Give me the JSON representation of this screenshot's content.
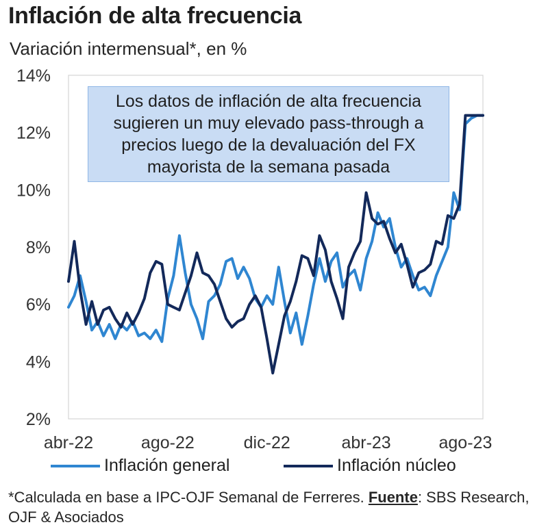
{
  "chart_data": {
    "type": "line",
    "title": "Inflación de alta frecuencia",
    "subtitle": "Variación intermensual*, en %",
    "x_tick_labels": [
      "abr-22",
      "ago-22",
      "dic-22",
      "abr-23",
      "ago-23"
    ],
    "x_tick_positions": [
      0,
      17,
      34,
      51,
      68
    ],
    "x_range": [
      0,
      71
    ],
    "ylim": [
      2,
      14
    ],
    "y_ticks": [
      2,
      4,
      6,
      8,
      10,
      12,
      14
    ],
    "y_tick_labels": [
      "2%",
      "4%",
      "6%",
      "8%",
      "10%",
      "12%",
      "14%"
    ],
    "series": [
      {
        "name": "Inflación general",
        "color": "#2f86d1",
        "x": [
          0,
          1,
          2,
          3,
          4,
          5,
          6,
          7,
          8,
          9,
          10,
          11,
          12,
          13,
          14,
          15,
          16,
          17,
          18,
          19,
          20,
          21,
          22,
          23,
          24,
          25,
          26,
          27,
          28,
          29,
          30,
          31,
          32,
          33,
          34,
          35,
          36,
          37,
          38,
          39,
          40,
          41,
          42,
          43,
          44,
          45,
          46,
          47,
          48,
          49,
          50,
          51,
          52,
          53,
          54,
          55,
          56,
          57,
          58,
          59,
          60,
          61,
          62,
          63,
          64,
          65,
          66,
          67,
          68,
          69,
          70,
          71
        ],
        "values": [
          5.9,
          6.3,
          7.0,
          6.1,
          5.1,
          5.4,
          4.9,
          5.3,
          4.8,
          5.3,
          5.1,
          5.4,
          4.9,
          5.0,
          4.8,
          5.1,
          4.7,
          6.2,
          7.0,
          8.4,
          7.1,
          6.0,
          5.5,
          4.8,
          6.1,
          6.3,
          6.7,
          7.5,
          7.6,
          6.9,
          7.3,
          6.9,
          6.2,
          5.9,
          6.3,
          6.0,
          7.3,
          6.1,
          5.0,
          5.7,
          4.6,
          5.6,
          6.7,
          7.6,
          6.8,
          7.5,
          7.8,
          6.6,
          7.0,
          7.2,
          6.5,
          7.6,
          8.2,
          9.2,
          8.7,
          9.0,
          8.0,
          7.3,
          7.6,
          7.0,
          6.5,
          6.6,
          6.3,
          7.0,
          7.5,
          8.0,
          9.9,
          9.3,
          12.3,
          12.5,
          12.6,
          12.6
        ]
      },
      {
        "name": "Inflación núcleo",
        "color": "#13295a",
        "x": [
          0,
          1,
          2,
          3,
          4,
          5,
          6,
          7,
          8,
          9,
          10,
          11,
          12,
          13,
          14,
          15,
          16,
          17,
          18,
          19,
          20,
          21,
          22,
          23,
          24,
          25,
          26,
          27,
          28,
          29,
          30,
          31,
          32,
          33,
          34,
          35,
          36,
          37,
          38,
          39,
          40,
          41,
          42,
          43,
          44,
          45,
          46,
          47,
          48,
          49,
          50,
          51,
          52,
          53,
          54,
          55,
          56,
          57,
          58,
          59,
          60,
          61,
          62,
          63,
          64,
          65,
          66,
          67,
          68,
          69,
          70,
          71
        ],
        "values": [
          6.8,
          8.2,
          6.5,
          5.3,
          6.1,
          5.3,
          5.8,
          5.9,
          5.5,
          5.2,
          5.7,
          5.3,
          5.7,
          6.2,
          7.1,
          7.5,
          7.4,
          6.0,
          5.9,
          5.8,
          6.4,
          7.0,
          7.8,
          7.1,
          7.0,
          6.7,
          6.1,
          5.5,
          5.2,
          5.4,
          5.5,
          6.0,
          6.3,
          5.9,
          4.8,
          3.6,
          4.6,
          5.6,
          6.1,
          6.8,
          7.7,
          7.6,
          7.0,
          8.4,
          7.9,
          6.8,
          6.2,
          5.5,
          7.3,
          7.8,
          8.2,
          9.9,
          9.0,
          8.8,
          8.9,
          8.3,
          7.8,
          8.1,
          7.4,
          6.6,
          7.1,
          7.2,
          7.4,
          8.2,
          8.1,
          9.1,
          9.0,
          9.5,
          12.6,
          12.6,
          12.6,
          12.6
        ]
      }
    ],
    "annotation": "Los datos de inflación de alta frecuencia sugieren un muy elevado pass-through a precios luego de la devaluación del FX mayorista de la semana pasada",
    "legend_position": "bottom"
  },
  "footnote": {
    "prefix": "*Calculada en base a IPC-OJF Semanal de Ferreres. ",
    "source_label": "Fuente",
    "suffix": ": SBS Research, OJF & Asociados"
  }
}
